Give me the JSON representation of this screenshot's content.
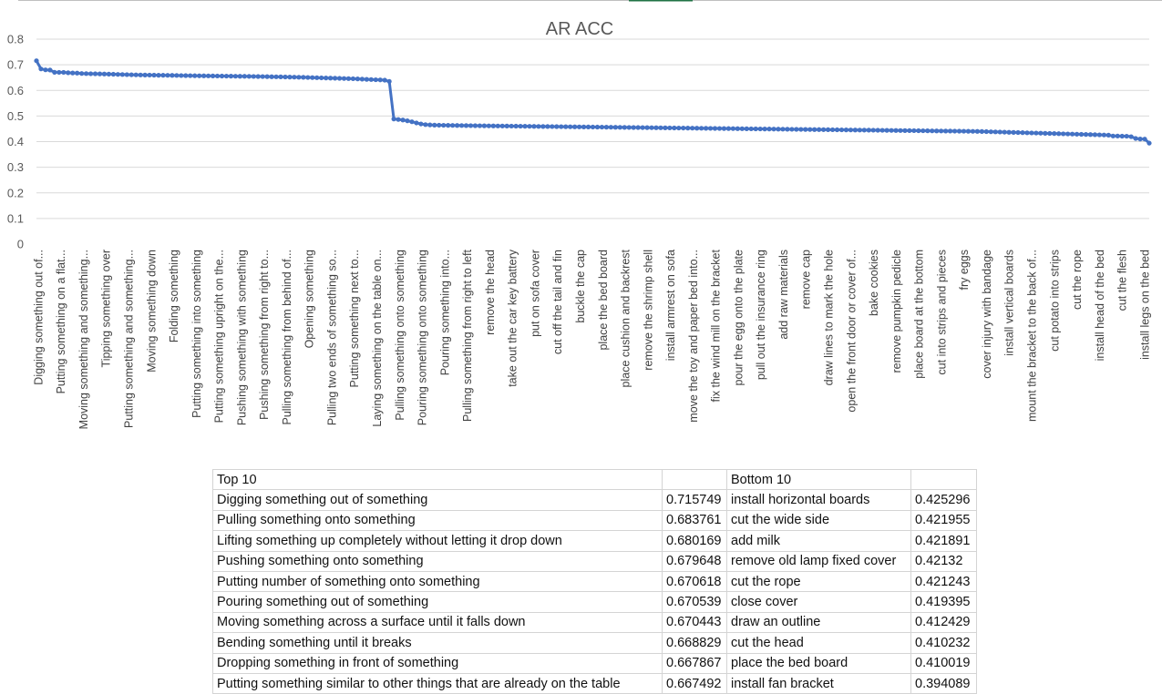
{
  "chart_data": {
    "type": "line",
    "title": "AR ACC",
    "xlabel": "",
    "ylabel": "",
    "ylim": [
      0,
      0.8
    ],
    "yticks": [
      "0",
      "0.1",
      "0.2",
      "0.3",
      "0.4",
      "0.5",
      "0.6",
      "0.7",
      "0.8"
    ],
    "grid": true,
    "legend": "none",
    "x_tick_labels": [
      "Digging something out of...",
      "Putting something on a flat...",
      "Moving something and something...",
      "Tipping something over",
      "Putting something and something...",
      "Moving something down",
      "Folding something",
      "Putting something into something",
      "Putting something upright on the...",
      "Pushing something with something",
      "Pushing something from right to...",
      "Pulling something from behind of...",
      "Opening something",
      "Pulling two ends of something so...",
      "Putting something next to...",
      "Laying something on the table on...",
      "Pulling something onto something",
      "Pouring something onto something",
      "Pouring something into...",
      "Pulling something from right to left",
      "remove the head",
      "take out the car key battery",
      "put on sofa cover",
      "cut off the tail and fin",
      "buckle the cap",
      "place the bed board",
      "place cushion and backrest",
      "remove the shrimp shell",
      "install armrest on sofa",
      "move the toy and paper bed into...",
      "fix the wind mill on the bracket",
      "pour the egg onto the plate",
      "pull out the insurance ring",
      "add raw materials",
      "remove cap",
      "draw lines to mark the hole",
      "open the front door or cover of...",
      "bake cookies",
      "remove pumpkin pedicle",
      "place board at the bottom",
      "cut into strips and pieces",
      "fry eggs",
      "cover injury with bandage",
      "install vertical boards",
      "mount the bracket to the back of...",
      "cut potato into strips",
      "cut the rope",
      "install head of the bed",
      "cut the flesh",
      "install legs on the bed"
    ],
    "series": [
      {
        "values": [
          0.7157,
          0.6838,
          0.6802,
          0.6796,
          0.6706,
          0.6705,
          0.6704,
          0.6688,
          0.6679,
          0.6675,
          0.666,
          0.6655,
          0.665,
          0.6648,
          0.6645,
          0.664,
          0.6635,
          0.663,
          0.6625,
          0.662,
          0.6615,
          0.661,
          0.6606,
          0.6603,
          0.66,
          0.6598,
          0.6595,
          0.6592,
          0.659,
          0.6588,
          0.6586,
          0.6584,
          0.658,
          0.6578,
          0.6575,
          0.6572,
          0.657,
          0.6568,
          0.6566,
          0.6564,
          0.6562,
          0.656,
          0.6558,
          0.6556,
          0.6554,
          0.6552,
          0.655,
          0.6548,
          0.6545,
          0.6542,
          0.654,
          0.6537,
          0.6534,
          0.6531,
          0.6528,
          0.6525,
          0.652,
          0.6517,
          0.6514,
          0.651,
          0.6505,
          0.65,
          0.6495,
          0.649,
          0.6485,
          0.648,
          0.6475,
          0.647,
          0.6465,
          0.646,
          0.6455,
          0.6448,
          0.644,
          0.6432,
          0.6424,
          0.6416,
          0.641,
          0.64,
          0.635,
          0.4885,
          0.4865,
          0.4845,
          0.4812,
          0.4775,
          0.473,
          0.469,
          0.4665,
          0.4652,
          0.4645,
          0.4641,
          0.4638,
          0.4635,
          0.4633,
          0.4631,
          0.4629,
          0.4627,
          0.4625,
          0.4622,
          0.462,
          0.4618,
          0.4616,
          0.4614,
          0.4612,
          0.461,
          0.4608,
          0.4606,
          0.4604,
          0.4602,
          0.46,
          0.4598,
          0.4596,
          0.4594,
          0.4592,
          0.459,
          0.4588,
          0.4586,
          0.4584,
          0.4582,
          0.458,
          0.4578,
          0.4576,
          0.4574,
          0.4572,
          0.457,
          0.4568,
          0.4566,
          0.4564,
          0.4562,
          0.456,
          0.4558,
          0.4556,
          0.4554,
          0.4552,
          0.455,
          0.4548,
          0.4546,
          0.4544,
          0.4542,
          0.454,
          0.4538,
          0.4536,
          0.4534,
          0.4532,
          0.453,
          0.4528,
          0.4526,
          0.4524,
          0.4522,
          0.452,
          0.4518,
          0.4516,
          0.4514,
          0.4512,
          0.451,
          0.4508,
          0.4506,
          0.4504,
          0.4502,
          0.45,
          0.4498,
          0.4496,
          0.4494,
          0.4492,
          0.449,
          0.4488,
          0.4486,
          0.4484,
          0.4482,
          0.448,
          0.4478,
          0.4476,
          0.4474,
          0.4472,
          0.447,
          0.4468,
          0.4466,
          0.4464,
          0.4462,
          0.446,
          0.4458,
          0.4456,
          0.4454,
          0.4452,
          0.445,
          0.4448,
          0.4446,
          0.4444,
          0.4442,
          0.444,
          0.4438,
          0.4436,
          0.4434,
          0.4432,
          0.443,
          0.4428,
          0.4426,
          0.4424,
          0.4422,
          0.442,
          0.4418,
          0.4416,
          0.4414,
          0.4412,
          0.441,
          0.4408,
          0.4406,
          0.4404,
          0.4402,
          0.44,
          0.4395,
          0.439,
          0.4385,
          0.438,
          0.4375,
          0.437,
          0.4365,
          0.436,
          0.4355,
          0.435,
          0.4345,
          0.434,
          0.4335,
          0.433,
          0.4325,
          0.432,
          0.4315,
          0.431,
          0.4305,
          0.43,
          0.4295,
          0.429,
          0.4285,
          0.428,
          0.4275,
          0.427,
          0.4265,
          0.426,
          0.4253,
          0.422,
          0.4219,
          0.4213,
          0.4212,
          0.4194,
          0.4124,
          0.4102,
          0.41,
          0.3941
        ]
      }
    ]
  },
  "table": {
    "header": {
      "left": "Top 10",
      "left_value": "",
      "right": "Bottom 10",
      "right_value": ""
    },
    "rows": [
      {
        "left": "Digging something out of something",
        "left_value": "0.715749",
        "right": "install horizontal boards",
        "right_value": "0.425296"
      },
      {
        "left": "Pulling something onto something",
        "left_value": "0.683761",
        "right": "cut the wide side",
        "right_value": "0.421955"
      },
      {
        "left": "Lifting something up completely without letting it drop down",
        "left_value": "0.680169",
        "right": "add milk",
        "right_value": "0.421891"
      },
      {
        "left": "Pushing something onto something",
        "left_value": "0.679648",
        "right": "remove old lamp fixed cover",
        "right_value": "0.42132"
      },
      {
        "left": "Putting number of something onto something",
        "left_value": "0.670618",
        "right": "cut the rope",
        "right_value": "0.421243"
      },
      {
        "left": "Pouring something out of something",
        "left_value": "0.670539",
        "right": "close cover",
        "right_value": "0.419395"
      },
      {
        "left": "Moving something across a surface until it falls down",
        "left_value": "0.670443",
        "right": "draw an outline",
        "right_value": "0.412429"
      },
      {
        "left": "Bending something until it breaks",
        "left_value": "0.668829",
        "right": "cut the head",
        "right_value": "0.410232"
      },
      {
        "left": "Dropping something in front of something",
        "left_value": "0.667867",
        "right": "place the bed board",
        "right_value": "0.410019"
      },
      {
        "left": "Putting something similar to other things that are already on the table",
        "left_value": "0.667492",
        "right": "install fan bracket",
        "right_value": "0.394089"
      }
    ]
  }
}
